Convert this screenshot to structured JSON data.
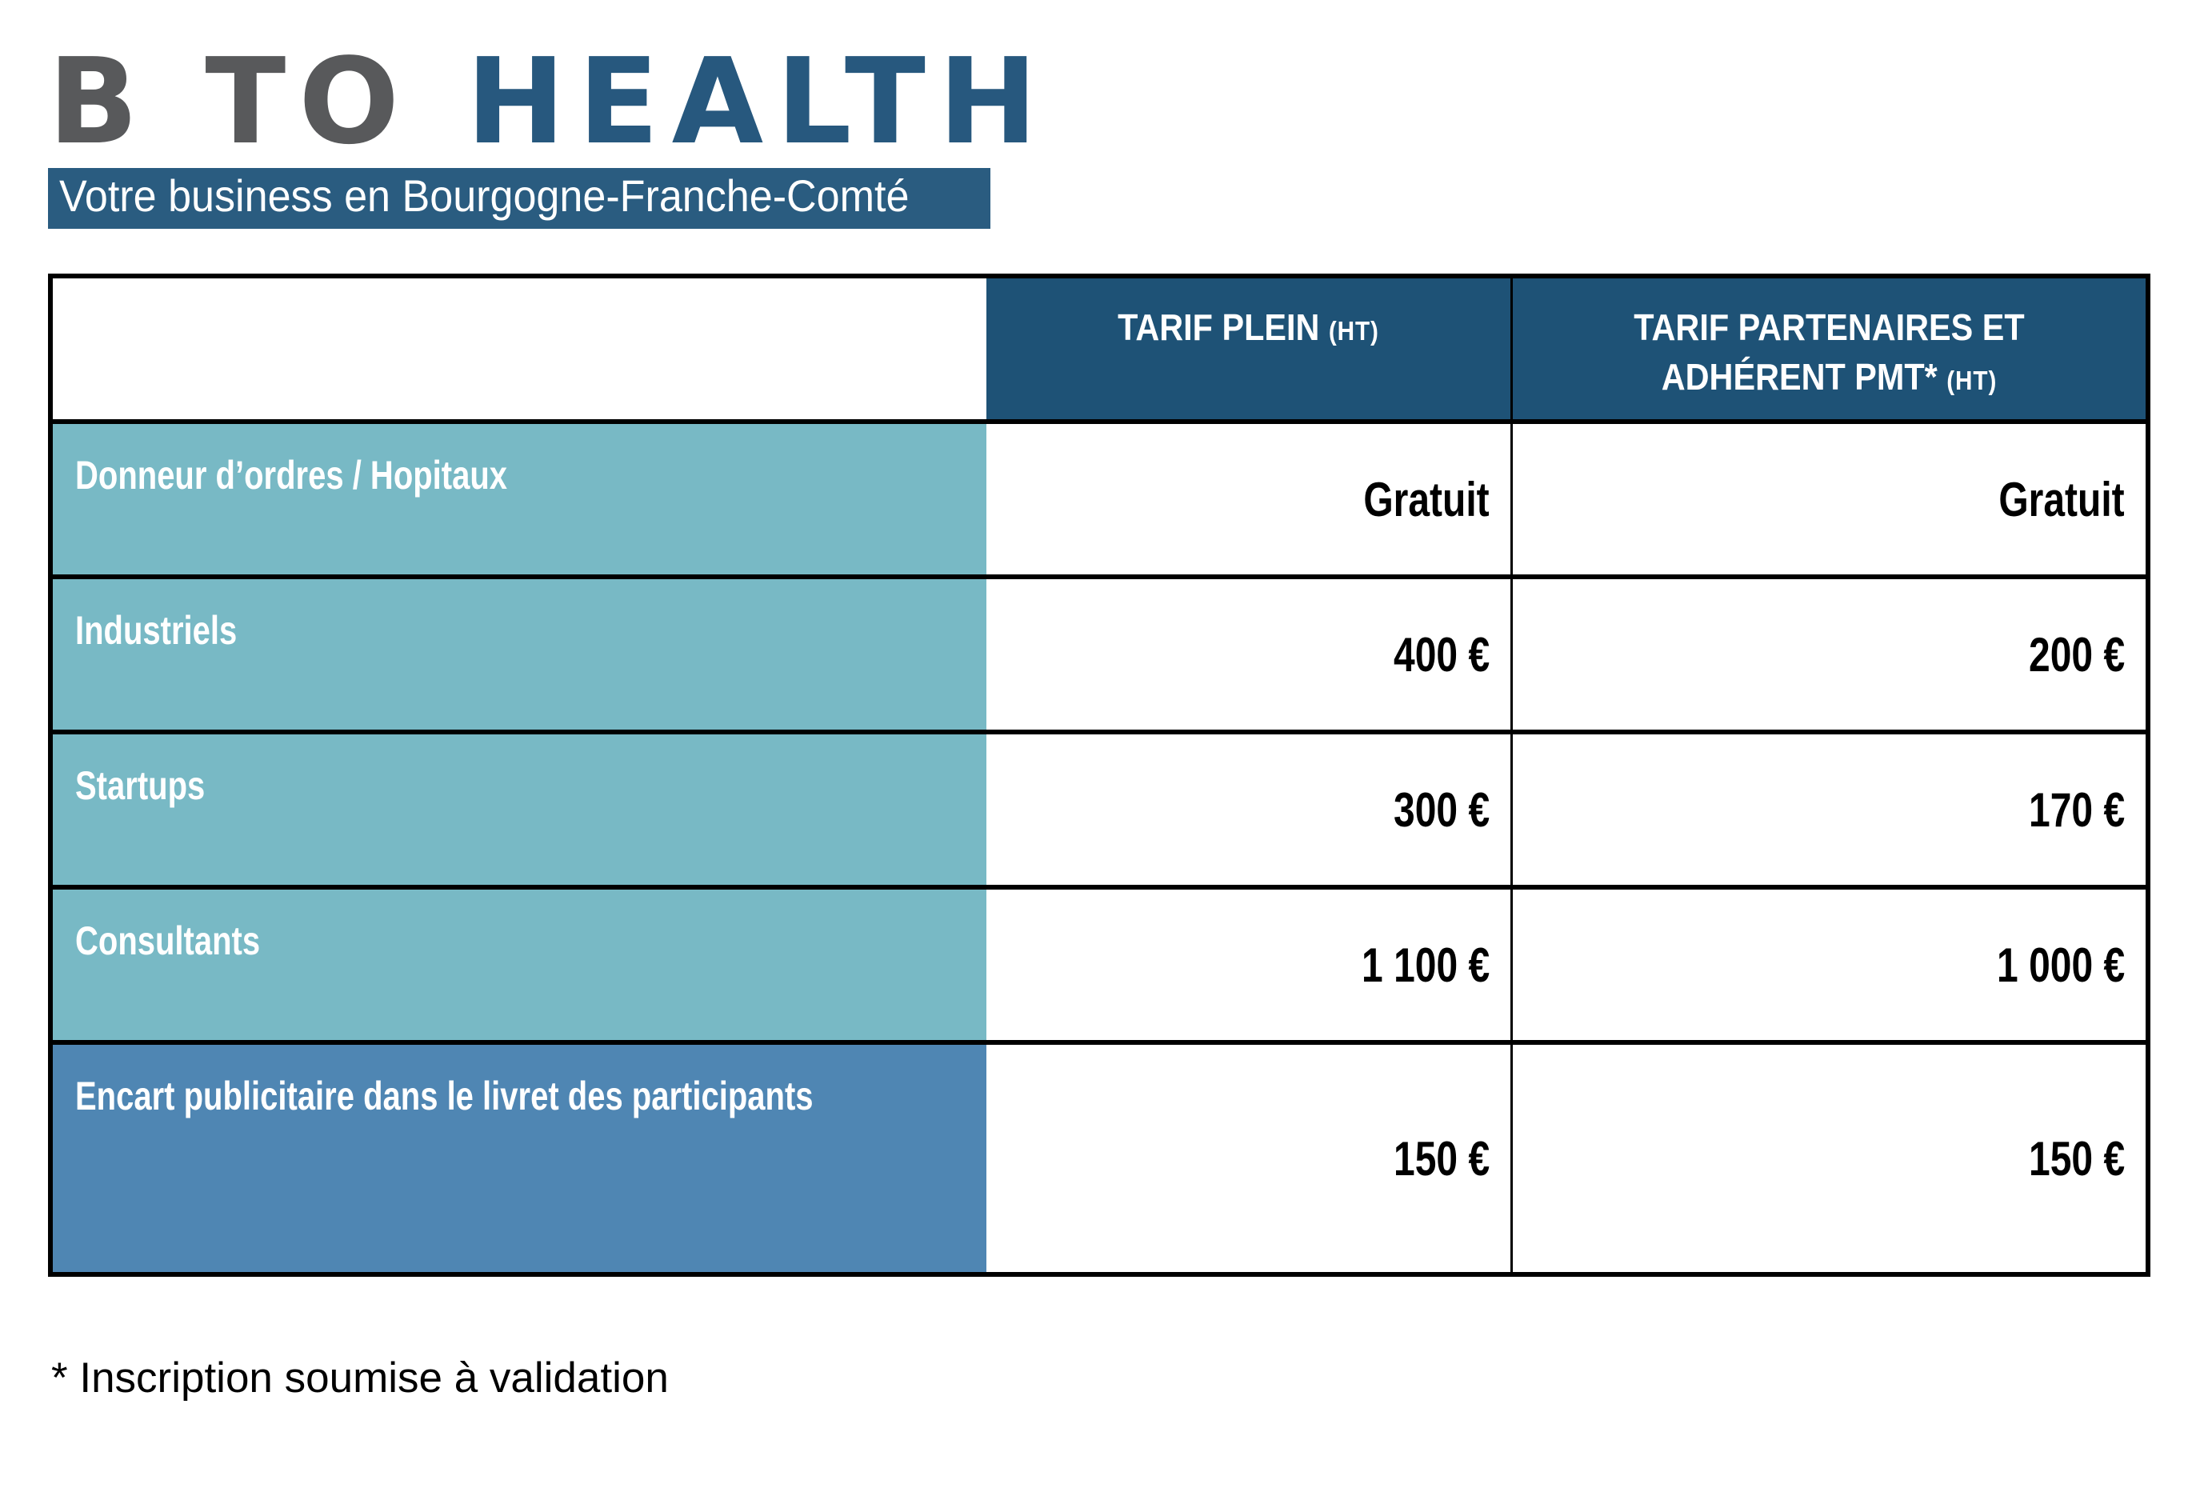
{
  "logo": {
    "brand_part1": "B TO",
    "brand_part2": "HEALTH",
    "tagline": "Votre business en Bourgogne-Franche-Comté"
  },
  "table": {
    "header": {
      "col_tarif_plein": {
        "label": "TARIF PLEIN",
        "suffix": "(HT)"
      },
      "col_tarif_partenaires": {
        "label": "TARIF PARTENAIRES ET ADHÉRENT PMT*",
        "suffix": "(HT)"
      }
    },
    "rows": [
      {
        "label": "Donneur d’ordres  / Hopitaux",
        "tarif_plein": "Gratuit",
        "tarif_partenaires": "Gratuit"
      },
      {
        "label": "Industriels",
        "tarif_plein": "400 €",
        "tarif_partenaires": "200 €"
      },
      {
        "label": "Startups",
        "tarif_plein": "300 €",
        "tarif_partenaires": "170 €"
      },
      {
        "label": "Consultants",
        "tarif_plein": "1 100 €",
        "tarif_partenaires": "1 000 €"
      },
      {
        "label": "Encart publicitaire dans le livret des participants",
        "tarif_plein": "150 €",
        "tarif_partenaires": "150 €"
      }
    ]
  },
  "footnote": "* Inscription soumise à validation",
  "colors": {
    "header_bg": "#1E5276",
    "teal_bg": "#78B9C5",
    "row5_bg": "#4F86B3",
    "logo_gray": "#58595B",
    "logo_blue": "#27587E",
    "banner_bg": "#2A5C80",
    "line_black": "#000000",
    "text_black": "#1A1A1A"
  }
}
